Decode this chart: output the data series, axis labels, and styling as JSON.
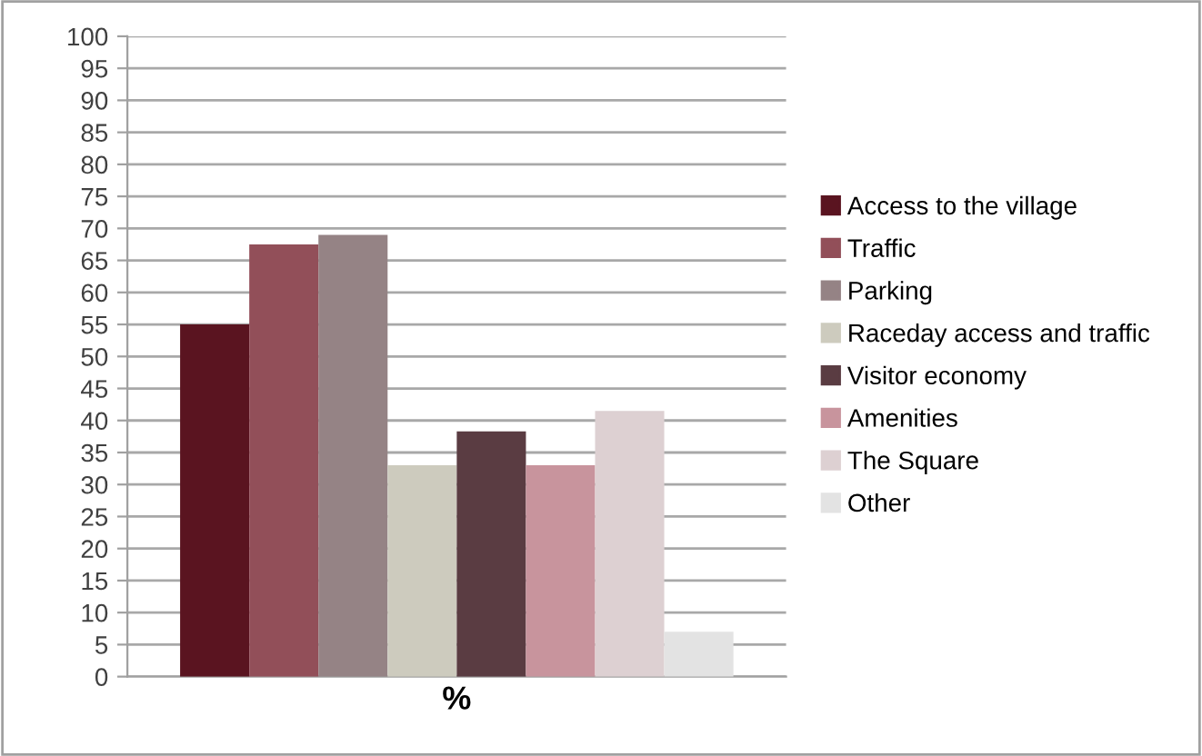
{
  "chart_data": {
    "type": "bar",
    "categories": [
      "%"
    ],
    "series": [
      {
        "name": "Access to the village",
        "color": "#5a1420",
        "values": [
          55
        ]
      },
      {
        "name": "Traffic",
        "color": "#924f59",
        "values": [
          67.5
        ]
      },
      {
        "name": "Parking",
        "color": "#958385",
        "values": [
          69
        ]
      },
      {
        "name": "Raceday access and traffic",
        "color": "#cdcbbe",
        "values": [
          33
        ]
      },
      {
        "name": "Visitor economy",
        "color": "#5a3c42",
        "values": [
          38.3
        ]
      },
      {
        "name": "Amenities",
        "color": "#c8949d",
        "values": [
          33
        ]
      },
      {
        "name": "The Square",
        "color": "#ddd0d2",
        "values": [
          41.5
        ]
      },
      {
        "name": "Other",
        "color": "#e3e3e3",
        "values": [
          7
        ]
      }
    ],
    "ylim": [
      0,
      100
    ],
    "yticks": [
      0,
      5,
      10,
      15,
      20,
      25,
      30,
      35,
      40,
      45,
      50,
      55,
      60,
      65,
      70,
      75,
      80,
      85,
      90,
      95,
      100
    ],
    "grid": "y",
    "legend": "right"
  }
}
